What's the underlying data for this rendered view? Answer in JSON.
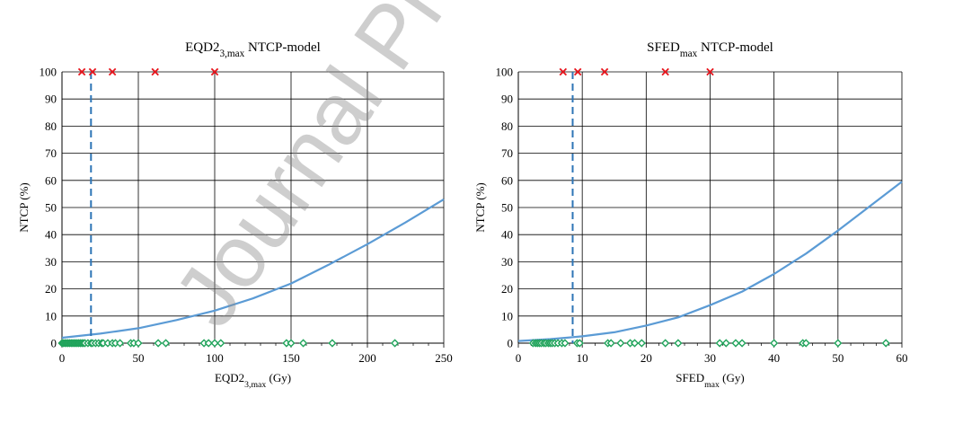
{
  "watermark": "Journal Pre-proof",
  "colors": {
    "curve": "#5b9bd5",
    "threshold": "#2e75b6",
    "event": "#e8141c",
    "no_event": "#1fa35a",
    "grid": "#000000"
  },
  "chart_data": [
    {
      "type": "line",
      "title": {
        "main": "EQD2",
        "sub": "3,max",
        "rest": " NTCP-model"
      },
      "xlabel": {
        "main": "EQD2",
        "sub": "3,max",
        "rest": " (Gy)"
      },
      "ylabel": "NTCP (%)",
      "xlim": [
        0,
        250
      ],
      "ylim": [
        0,
        100
      ],
      "x_ticks": [
        0,
        50,
        100,
        150,
        200,
        250
      ],
      "y_ticks": [
        0,
        10,
        20,
        30,
        40,
        50,
        60,
        70,
        80,
        90,
        100
      ],
      "grid": true,
      "series": [
        {
          "kind": "curve",
          "x": [
            0,
            25,
            50,
            75,
            100,
            125,
            150,
            175,
            200,
            225,
            250
          ],
          "y": [
            2,
            3.5,
            5.5,
            8.5,
            12,
            16.5,
            22,
            29,
            36.5,
            44.5,
            53
          ]
        },
        {
          "kind": "threshold",
          "x": 19
        },
        {
          "kind": "events",
          "marker": "x",
          "x": [
            13,
            20,
            33,
            61,
            100
          ],
          "y": [
            100,
            100,
            100,
            100,
            100
          ]
        },
        {
          "kind": "no_events",
          "marker": "diamond",
          "x": [
            0,
            1,
            2,
            3,
            4,
            5,
            6,
            7,
            8,
            9,
            10,
            11,
            12,
            13,
            14,
            15,
            17,
            19,
            20,
            22,
            24,
            26,
            27,
            30,
            33,
            35,
            38,
            45,
            47,
            50,
            63,
            68,
            93,
            96,
            100,
            104,
            147,
            150,
            158,
            177,
            218
          ],
          "y": [
            0,
            0,
            0,
            0,
            0,
            0,
            0,
            0,
            0,
            0,
            0,
            0,
            0,
            0,
            0,
            0,
            0,
            0,
            0,
            0,
            0,
            0,
            0,
            0,
            0,
            0,
            0,
            0,
            0,
            0,
            0,
            0,
            0,
            0,
            0,
            0,
            0,
            0,
            0,
            0,
            0
          ]
        }
      ]
    },
    {
      "type": "line",
      "title": {
        "main": "SFED",
        "sub": "max",
        "rest": " NTCP-model"
      },
      "xlabel": {
        "main": "SFED",
        "sub": "max",
        "rest": " (Gy)"
      },
      "ylabel": "NTCP (%)",
      "xlim": [
        0,
        60
      ],
      "ylim": [
        0,
        100
      ],
      "x_ticks": [
        0,
        10,
        20,
        30,
        40,
        50,
        60
      ],
      "y_ticks": [
        0,
        10,
        20,
        30,
        40,
        50,
        60,
        70,
        80,
        90,
        100
      ],
      "grid": true,
      "series": [
        {
          "kind": "curve",
          "x": [
            0,
            5,
            10,
            15,
            20,
            25,
            30,
            35,
            40,
            45,
            50,
            55,
            60
          ],
          "y": [
            0.8,
            1.5,
            2.5,
            4,
            6.5,
            9.5,
            14,
            19,
            25.5,
            33,
            41.5,
            50.5,
            59.5
          ]
        },
        {
          "kind": "threshold",
          "x": 8.5
        },
        {
          "kind": "events",
          "marker": "x",
          "x": [
            7,
            9.3,
            13.5,
            23,
            30
          ],
          "y": [
            100,
            100,
            100,
            100,
            100
          ]
        },
        {
          "kind": "no_events",
          "marker": "diamond",
          "x": [
            2.3,
            2.7,
            3,
            3.3,
            3.6,
            4,
            4.3,
            4.7,
            5,
            5.3,
            5.7,
            6.2,
            6.8,
            7.3,
            9.2,
            9.6,
            14,
            14.5,
            16,
            17.5,
            18.2,
            19.3,
            23,
            25,
            31.5,
            32.5,
            34,
            35,
            40,
            44.5,
            45,
            50,
            57.5
          ],
          "y": [
            0,
            0,
            0,
            0,
            0,
            0,
            0,
            0,
            0,
            0,
            0,
            0,
            0,
            0,
            0,
            0,
            0,
            0,
            0,
            0,
            0,
            0,
            0,
            0,
            0,
            0,
            0,
            0,
            0,
            0,
            0,
            0,
            0
          ]
        }
      ]
    }
  ]
}
